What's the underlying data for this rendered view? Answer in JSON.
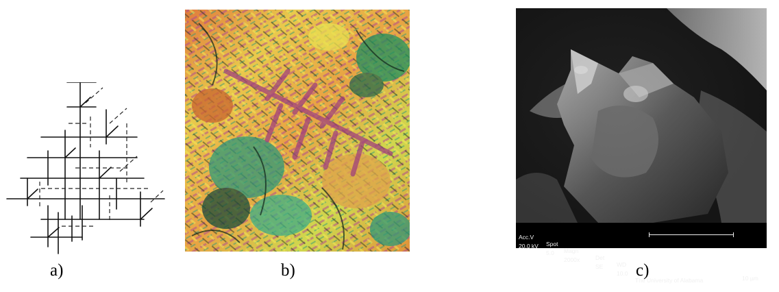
{
  "captions": {
    "a": "a)",
    "b": "b)",
    "c": "c)"
  },
  "sem_info": {
    "headers": [
      "Acc.V",
      "Spot",
      "Magn",
      "Det",
      "WD"
    ],
    "values": [
      "20.0 kV",
      "5.0",
      "2000x",
      "SE",
      "10.0"
    ],
    "scale_label": "10 µm",
    "institution": "The University of Alabama"
  }
}
